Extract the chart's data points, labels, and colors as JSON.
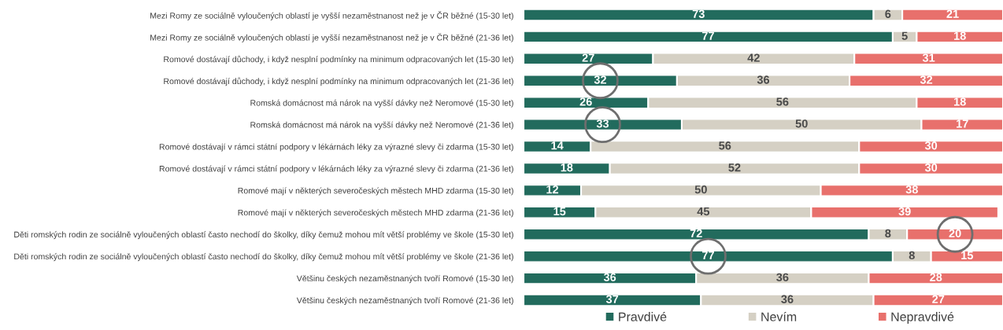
{
  "chart_data": {
    "type": "bar",
    "orientation": "horizontal",
    "stacked": true,
    "data_labels": true,
    "legend": "bottom",
    "grid": false,
    "tick_labels": "y",
    "categories": [
      "Mezi Romy ze sociálně vyloučených oblastí je vyšší nezaměstnanost než je v ČR běžné (15-30 let)",
      "Mezi Romy ze sociálně vyloučených oblastí je vyšší nezaměstnanost než je v ČR běžné (21-36 let)",
      "Romové dostávají důchody, i když nesplní podmínky na minimum odpracovaných let (15-30 let)",
      "Romové dostávají důchody, i když nesplní podmínky na minimum odpracovaných let (21-36 let)",
      "Romská domácnost má nárok na vyšší dávky než Neromové (15-30 let)",
      "Romská domácnost má nárok na vyšší dávky než Neromové (21-36 let)",
      "Romové dostávají v rámci státní podpory v lékárnách léky za výrazné slevy či zdarma (15-30 let)",
      "Romové dostávají v rámci státní podpory v lékárnách léky za výrazné slevy či zdarma (21-36 let)",
      "Romové mají v některých severočeských městech MHD zdarma (15-30 let)",
      "Romové mají v některých severočeských městech MHD zdarma (21-36 let)",
      "Děti romských rodin ze sociálně vyloučených oblastí často nechodí do školky, díky čemuž mohou mít větší problémy ve škole (15-30 let)",
      "Děti romských rodin ze sociálně vyloučených oblastí často nechodí do školky, díky čemuž mohou mít větší problémy ve škole (21-36 let)",
      "Většinu českých nezaměstnaných tvoří Romové (15-30 let)",
      "Většinu českých nezaměstnaných tvoří Romové (21-36 let)"
    ],
    "series": [
      {
        "name": "Pravdivé",
        "color": "#226b5d",
        "values": [
          73,
          77,
          27,
          32,
          26,
          33,
          14,
          18,
          12,
          15,
          72,
          77,
          36,
          37
        ]
      },
      {
        "name": "Nevím",
        "color": "#d5d0c4",
        "values": [
          6,
          5,
          42,
          36,
          56,
          50,
          56,
          52,
          50,
          45,
          8,
          8,
          36,
          36
        ]
      },
      {
        "name": "Nepravdivé",
        "color": "#e8706c",
        "values": [
          21,
          18,
          31,
          32,
          18,
          17,
          30,
          30,
          38,
          39,
          20,
          15,
          28,
          27
        ]
      }
    ]
  }
}
